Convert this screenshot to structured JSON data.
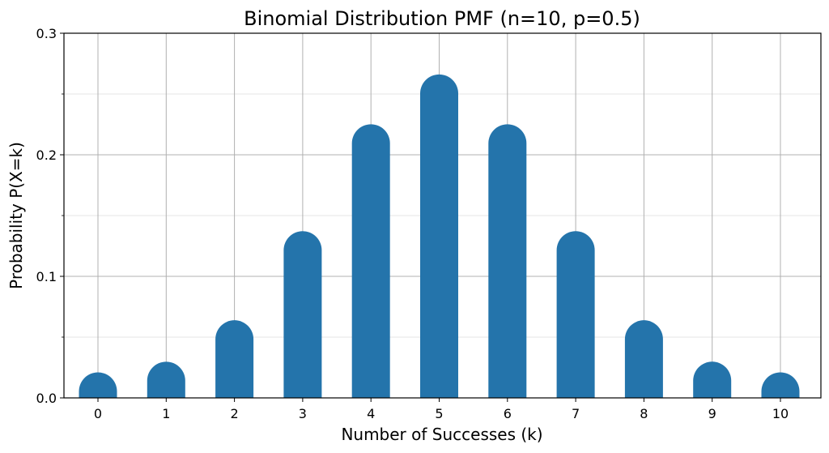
{
  "chart_data": {
    "type": "bar",
    "title": "Binomial Distribution PMF (n=10, p=0.5)",
    "xlabel": "Number of Successes (k)",
    "ylabel": "Probability P(X=k)",
    "categories": [
      "0",
      "1",
      "2",
      "3",
      "4",
      "5",
      "6",
      "7",
      "8",
      "9",
      "10"
    ],
    "values": [
      0.001,
      0.0098,
      0.0439,
      0.1172,
      0.2051,
      0.2461,
      0.2051,
      0.1172,
      0.0439,
      0.0098,
      0.001
    ],
    "ylim": [
      0,
      0.3
    ],
    "yticks": [
      "0.0",
      "0.1",
      "0.2",
      "0.3"
    ],
    "y_minor_ticks": [
      0.05,
      0.15,
      0.25
    ],
    "grid": true,
    "bar_style": "rounded-top",
    "bar_color": "#2474ab",
    "legend": null
  }
}
